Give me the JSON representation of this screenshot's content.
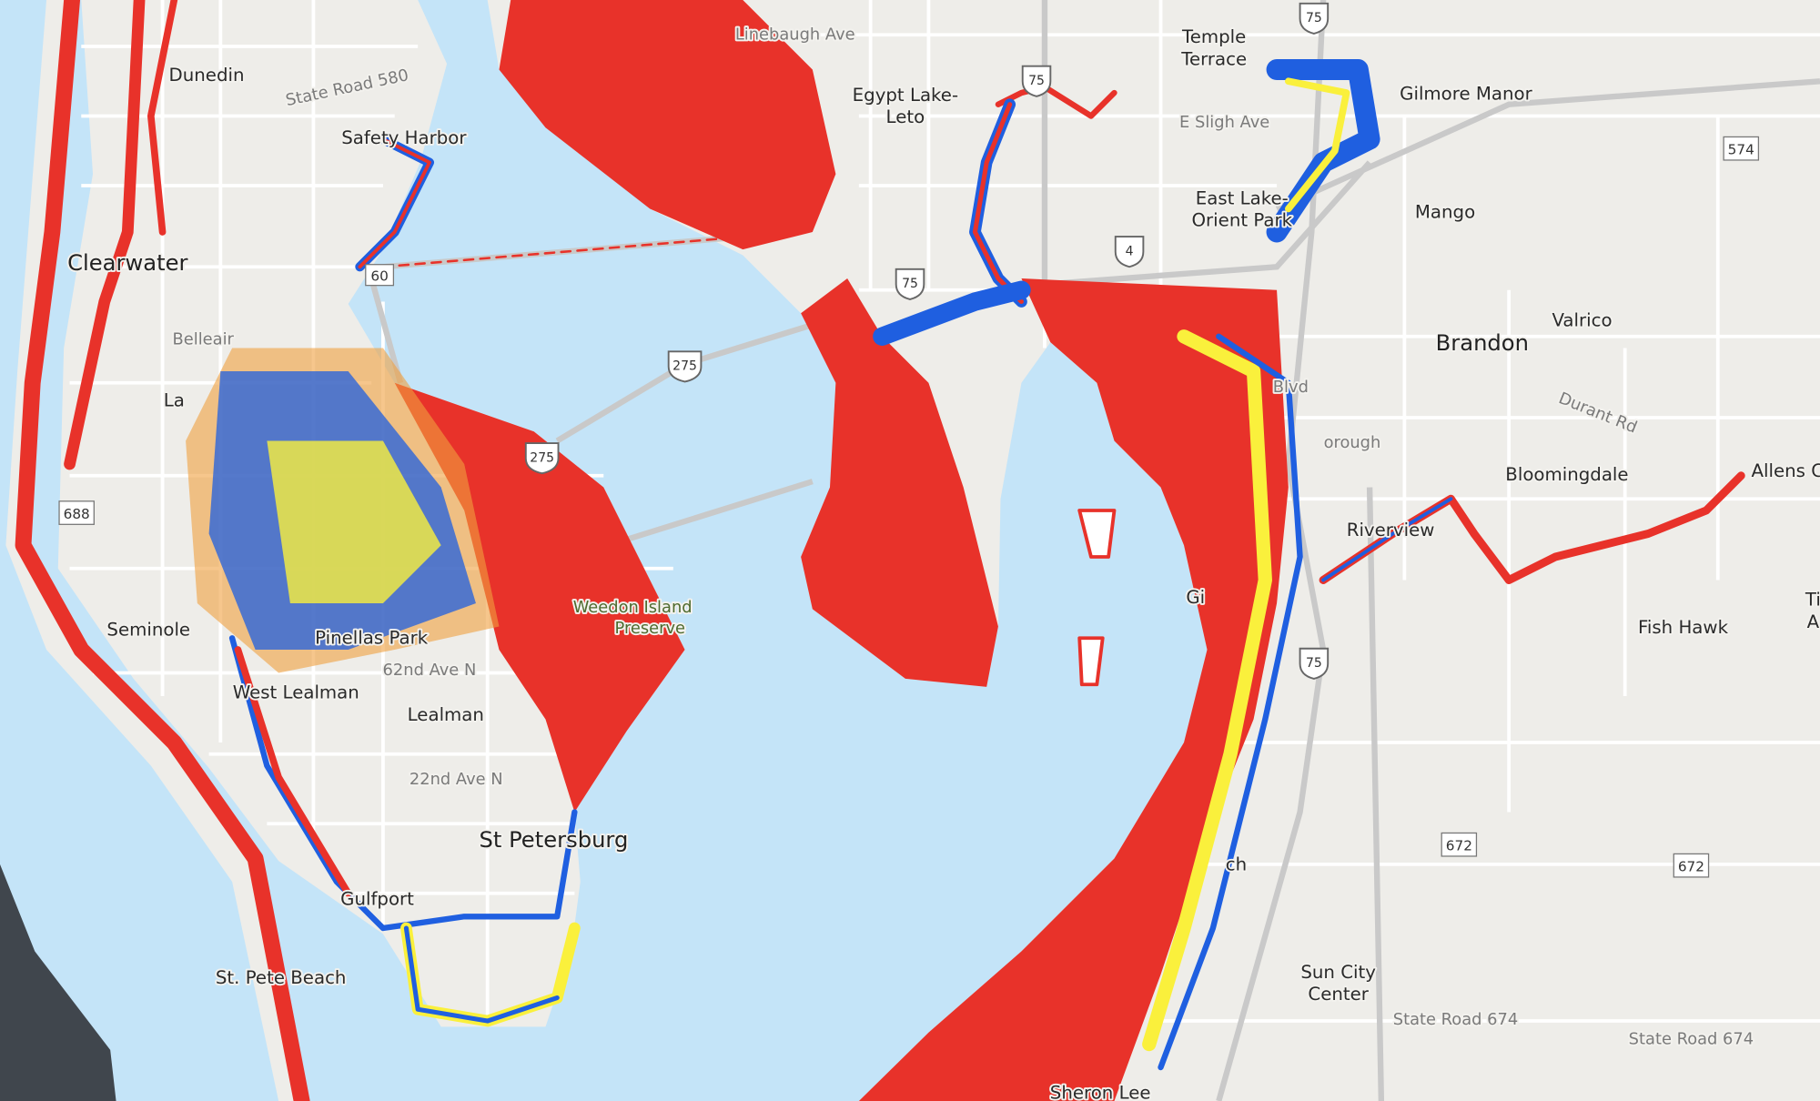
{
  "map": {
    "colors": {
      "water": "#c4e4f8",
      "land": "#eeede9",
      "road": "#ffffff",
      "highway": "#c9c9c9",
      "offshore_dark": "#40464d",
      "flood_red": "#e8322a",
      "flood_orange": "#f0a040",
      "flood_yellow": "#faf03c",
      "flood_blue": "#1f5fe0"
    },
    "labels": [
      "Dunedin",
      "State Road 580",
      "Safety Harbor",
      "Clearwater",
      "Belleair",
      "La",
      "Seminole",
      "Pinellas Park",
      "62nd Ave N",
      "West Lealman",
      "Lealman",
      "22nd Ave N",
      "St Petersburg",
      "Gulfport",
      "St. Pete Beach",
      "Weedon Island",
      "Preserve",
      "Linebaugh Ave",
      "Egypt Lake-",
      "Leto",
      "Temple",
      "Terrace",
      "Gilmore Manor",
      "E Sligh Ave",
      "East Lake-",
      "Orient Park",
      "Mango",
      "Valrico",
      "Brandon",
      "Durant Rd",
      "Bloomingdale",
      "Allens C",
      "Riverview",
      "Fish Hawk",
      "Ti",
      "A",
      "Blvd",
      "orough",
      "ch",
      "Gi",
      "Sun City",
      "Center",
      "State Road 674",
      "State Road 674",
      "Sheron Lee"
    ],
    "shields": {
      "interstate": [
        "75",
        "75",
        "75",
        "4",
        "275",
        "275",
        "75"
      ],
      "state": [
        "574",
        "688",
        "672",
        "672",
        "60"
      ]
    }
  }
}
